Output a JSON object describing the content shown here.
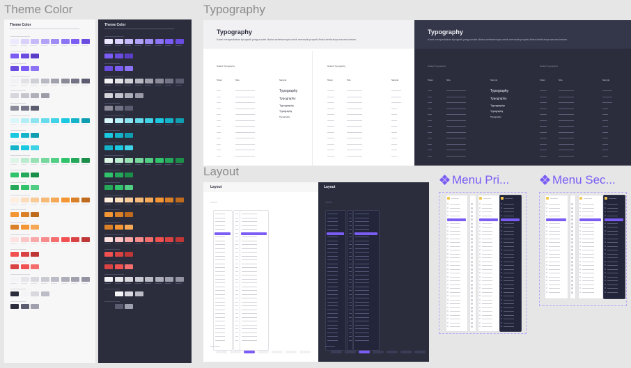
{
  "sections": {
    "theme_color": "Theme Color",
    "typography": "Typography",
    "layout": "Layout",
    "menu_primary": "Menu Pri...",
    "menu_secondary": "Menu Sec..."
  },
  "theme_boards": {
    "light_title": "Theme Color",
    "dark_title": "Theme Color"
  },
  "typography_boards": {
    "light": {
      "title": "Typography",
      "subtitle": "Kami menyediakan tipografi yang sudah diatur sebelumnya untuk memulai proyek Anda berikutnya secara instan.",
      "default_label": "Default Typography",
      "columns": [
        "Token",
        "Size",
        "Sample"
      ],
      "samples": [
        "Typography",
        "Typography",
        "Typography",
        "Typography",
        "Typography"
      ]
    },
    "dark": {
      "title": "Typography",
      "subtitle": "Kami menyediakan tipografi yang sudah diatur sebelumnya untuk memulai proyek Anda berikutnya secara instan.",
      "default_label": "Default Typography",
      "columns": [
        "Token",
        "Size",
        "Sample"
      ],
      "samples": [
        "Typography",
        "Typography",
        "Typography",
        "Typography",
        "Typography"
      ]
    }
  },
  "layout_boards": {
    "light_title": "Layout",
    "dark_title": "Layout"
  },
  "colors": {
    "accent": "#7b5cf5",
    "dark_board": "#2b2d3d",
    "light_board": "#f7f7f8",
    "canvas": "#e6e6e6",
    "section_label": "#8a8a8a"
  },
  "palette_groups": [
    {
      "name": "purple",
      "shades": [
        "#ece8fd",
        "#d9d1fb",
        "#c5b9f9",
        "#b2a2f7",
        "#9f8bf6",
        "#8c74f4",
        "#7b5cf5",
        "#6a4de0"
      ],
      "sub": [
        "#7b5cf5",
        "#6a4de0",
        "#5a3ec8"
      ],
      "sub2": [
        "#6a4de0",
        "#7b5cf5",
        "#8c74f4"
      ]
    },
    {
      "name": "neutral",
      "shades": [
        "#f2f2f4",
        "#e2e2e6",
        "#cfcfd6",
        "#b8b8c2",
        "#a1a1ad",
        "#8a8a98",
        "#737385",
        "#5c5c70"
      ],
      "sub": [
        "#d6d6dc",
        "#c4c4cc",
        "#b0b0ba",
        "#9c9ca8"
      ],
      "sub2": [
        "#8a8a98",
        "#737385",
        "#5c5c70"
      ]
    },
    {
      "name": "cyan",
      "shades": [
        "#d9f6fa",
        "#b3edf5",
        "#8ce4f0",
        "#66dbeb",
        "#40d2e6",
        "#1ac9e1",
        "#14b3c9",
        "#0f9db1"
      ],
      "sub": [
        "#1ac9e1",
        "#14b3c9",
        "#0f9db1"
      ],
      "sub2": [
        "#14b3c9",
        "#1ac9e1",
        "#40d2e6"
      ]
    },
    {
      "name": "green",
      "shades": [
        "#dcf5e6",
        "#baebce",
        "#97e1b5",
        "#75d79c",
        "#52cd84",
        "#30c36b",
        "#25a85a",
        "#1b8e49"
      ],
      "sub": [
        "#30c36b",
        "#25a85a",
        "#1b8e49"
      ],
      "sub2": [
        "#25a85a",
        "#30c36b",
        "#52cd84"
      ]
    },
    {
      "name": "orange",
      "shades": [
        "#fdeedd",
        "#fbdcbb",
        "#f9cb99",
        "#f7b977",
        "#f5a855",
        "#f39633",
        "#d98028",
        "#bf6b1e"
      ],
      "sub": [
        "#f39633",
        "#d98028",
        "#bf6b1e"
      ],
      "sub2": [
        "#d98028",
        "#f39633",
        "#f5a855"
      ]
    },
    {
      "name": "red",
      "shades": [
        "#fde2e2",
        "#fbc5c5",
        "#f9a8a8",
        "#f78b8b",
        "#f56e6e",
        "#f25151",
        "#d94343",
        "#bf3636"
      ],
      "sub": [
        "#f25151",
        "#d94343",
        "#bf3636"
      ],
      "sub2": [
        "#d94343",
        "#f25151",
        "#f56e6e"
      ]
    },
    {
      "name": "gray",
      "shades": [
        "#f4f4f6",
        "#e6e6ea",
        "#d8d8de",
        "#cacad2",
        "#bcbcc6",
        "#aeaeba",
        "#a0a0ae",
        "#9292a2"
      ],
      "sub": [
        "#2b2d3d",
        "#f4f4f6",
        "#d8d8de",
        "#bcbcc6"
      ],
      "sub2": [
        "#2b2d3d",
        "#5c5c70",
        "#a0a0ae"
      ]
    }
  ]
}
